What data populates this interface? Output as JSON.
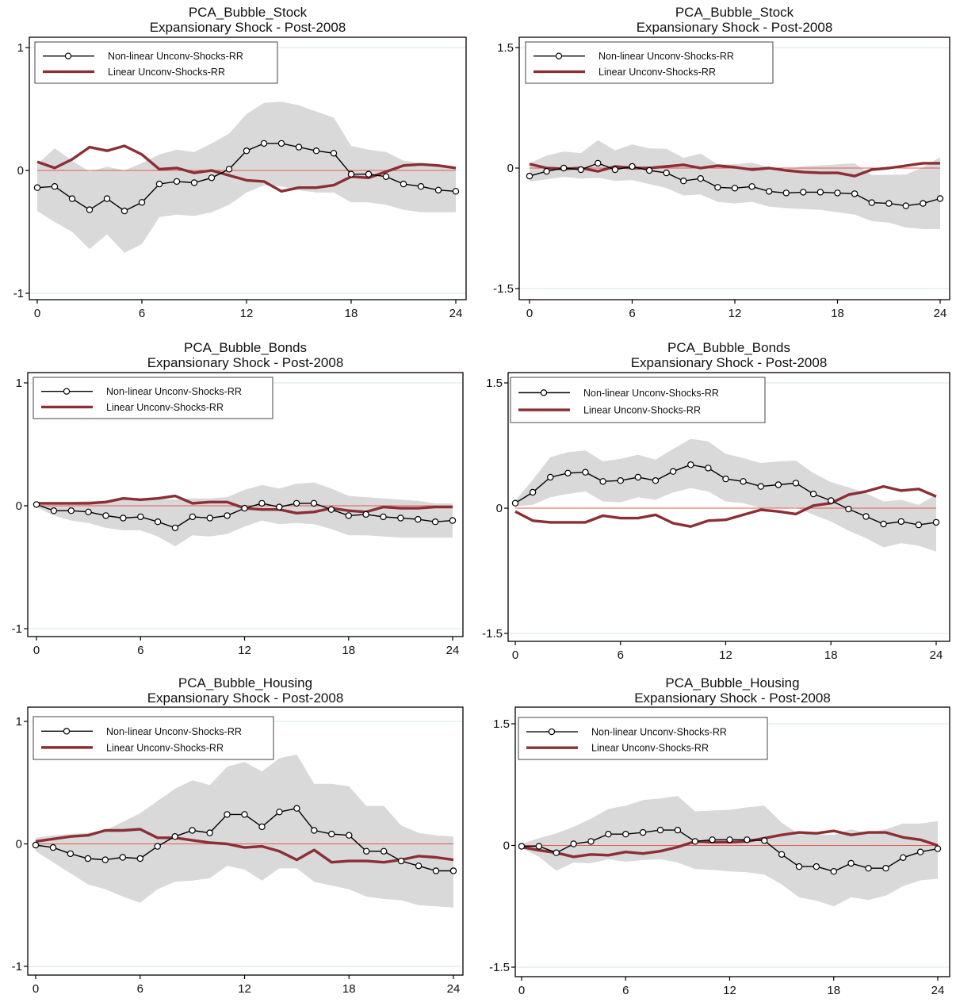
{
  "chart_data": [
    {
      "type": "line",
      "title": "PCA_Bubble_Stock",
      "subtitle": "Expansionary Shock - Post-2008",
      "xticks": [
        0,
        6,
        12,
        18,
        24
      ],
      "yticks": [
        -1,
        0,
        1
      ],
      "xlim": [
        0,
        24
      ],
      "ylim": [
        -1,
        1
      ],
      "legend_position": "top-left",
      "x": [
        0,
        1,
        2,
        3,
        4,
        5,
        6,
        7,
        8,
        9,
        10,
        11,
        12,
        13,
        14,
        15,
        16,
        17,
        18,
        19,
        20,
        21,
        22,
        23,
        24
      ],
      "series": [
        {
          "name": "Non-linear Unconv-Shocks-RR",
          "color": "#000000",
          "marker": "circle",
          "values": [
            -0.14,
            -0.13,
            -0.23,
            -0.32,
            -0.23,
            -0.33,
            -0.26,
            -0.11,
            -0.09,
            -0.1,
            -0.06,
            0.01,
            0.16,
            0.22,
            0.22,
            0.19,
            0.16,
            0.14,
            -0.03,
            -0.03,
            -0.05,
            -0.11,
            -0.13,
            -0.16,
            -0.17
          ]
        },
        {
          "name": "Linear Unconv-Shocks-RR",
          "color": "#8b2e35",
          "values": [
            0.07,
            0.02,
            0.09,
            0.19,
            0.16,
            0.2,
            0.13,
            0.01,
            0.02,
            -0.02,
            0.0,
            -0.04,
            -0.08,
            -0.09,
            -0.17,
            -0.14,
            -0.14,
            -0.12,
            -0.05,
            -0.06,
            -0.01,
            0.04,
            0.05,
            0.04,
            0.02
          ]
        }
      ],
      "band": {
        "lower": [
          -0.33,
          -0.42,
          -0.5,
          -0.64,
          -0.52,
          -0.67,
          -0.6,
          -0.38,
          -0.36,
          -0.37,
          -0.34,
          -0.28,
          -0.18,
          -0.12,
          -0.13,
          -0.16,
          -0.18,
          -0.18,
          -0.26,
          -0.26,
          -0.28,
          -0.32,
          -0.34,
          -0.34,
          -0.34
        ],
        "upper": [
          0.05,
          0.18,
          0.08,
          -0.01,
          0.03,
          0.0,
          0.06,
          0.13,
          0.17,
          0.15,
          0.22,
          0.3,
          0.46,
          0.55,
          0.56,
          0.53,
          0.48,
          0.43,
          0.2,
          0.17,
          0.15,
          0.08,
          0.06,
          0.03,
          0.02
        ]
      },
      "zero_line": true
    },
    {
      "type": "line",
      "title": "PCA_Bubble_Stock",
      "subtitle": "Expansionary Shock - Post-2008",
      "xticks": [
        0,
        6,
        12,
        18,
        24
      ],
      "yticks": [
        -1.5,
        0,
        1.5
      ],
      "xlim": [
        0,
        24
      ],
      "ylim": [
        -1.5,
        1.5
      ],
      "legend_position": "top-left",
      "x": [
        0,
        1,
        2,
        3,
        4,
        5,
        6,
        7,
        8,
        9,
        10,
        11,
        12,
        13,
        14,
        15,
        16,
        17,
        18,
        19,
        20,
        21,
        22,
        23,
        24
      ],
      "series": [
        {
          "name": "Non-linear Unconv-Shocks-RR",
          "color": "#000000",
          "marker": "circle",
          "values": [
            -0.1,
            -0.04,
            0.0,
            -0.02,
            0.06,
            -0.02,
            0.02,
            -0.03,
            -0.06,
            -0.16,
            -0.13,
            -0.24,
            -0.25,
            -0.23,
            -0.29,
            -0.31,
            -0.3,
            -0.3,
            -0.31,
            -0.32,
            -0.43,
            -0.44,
            -0.47,
            -0.44,
            -0.38
          ]
        },
        {
          "name": "Linear Unconv-Shocks-RR",
          "color": "#8b2e35",
          "values": [
            0.05,
            0.0,
            -0.01,
            0.0,
            -0.04,
            0.02,
            0.0,
            0.0,
            0.02,
            0.04,
            0.0,
            0.03,
            0.01,
            -0.02,
            0.0,
            -0.03,
            -0.05,
            -0.06,
            -0.06,
            -0.1,
            -0.02,
            0.0,
            0.03,
            0.06,
            0.06
          ]
        }
      ],
      "band": {
        "lower": [
          -0.17,
          -0.14,
          -0.11,
          -0.13,
          -0.12,
          -0.16,
          -0.15,
          -0.2,
          -0.25,
          -0.34,
          -0.33,
          -0.42,
          -0.44,
          -0.42,
          -0.48,
          -0.5,
          -0.51,
          -0.52,
          -0.55,
          -0.58,
          -0.66,
          -0.68,
          -0.74,
          -0.76,
          -0.76
        ]
      },
      "zero_line": true
    },
    {
      "type": "line",
      "title": "PCA_Bubble_Bonds",
      "subtitle": "Expansionary Shock - Post-2008",
      "xticks": [
        0,
        6,
        12,
        18,
        24
      ],
      "yticks": [
        -1,
        0,
        1
      ],
      "xlim": [
        0,
        24
      ],
      "ylim": [
        -1,
        1
      ],
      "legend_position": "top-left",
      "x": [
        0,
        1,
        2,
        3,
        4,
        5,
        6,
        7,
        8,
        9,
        10,
        11,
        12,
        13,
        14,
        15,
        16,
        17,
        18,
        19,
        20,
        21,
        22,
        23,
        24
      ],
      "series": [
        {
          "name": "Non-linear Unconv-Shocks-RR",
          "color": "#000000",
          "marker": "circle",
          "values": [
            0.01,
            -0.04,
            -0.04,
            -0.05,
            -0.08,
            -0.1,
            -0.09,
            -0.13,
            -0.18,
            -0.09,
            -0.1,
            -0.08,
            -0.02,
            0.02,
            -0.01,
            0.02,
            0.02,
            -0.03,
            -0.08,
            -0.07,
            -0.09,
            -0.1,
            -0.11,
            -0.13,
            -0.12
          ]
        },
        {
          "name": "Linear Unconv-Shocks-RR",
          "color": "#8b2e35",
          "values": [
            0.02,
            0.02,
            0.02,
            0.02,
            0.03,
            0.06,
            0.05,
            0.06,
            0.08,
            0.02,
            0.03,
            0.03,
            -0.02,
            -0.03,
            -0.03,
            -0.06,
            -0.05,
            -0.02,
            -0.04,
            -0.05,
            -0.01,
            -0.02,
            -0.02,
            -0.01,
            -0.01
          ]
        }
      ],
      "band": {
        "lower": [
          -0.01,
          -0.08,
          -0.12,
          -0.14,
          -0.18,
          -0.2,
          -0.2,
          -0.25,
          -0.33,
          -0.24,
          -0.25,
          -0.23,
          -0.17,
          -0.12,
          -0.15,
          -0.14,
          -0.15,
          -0.19,
          -0.24,
          -0.24,
          -0.25,
          -0.26,
          -0.26,
          -0.26,
          -0.26
        ],
        "upper": [
          0.03,
          0.02,
          0.03,
          0.04,
          0.04,
          0.05,
          0.06,
          0.06,
          0.05,
          0.06,
          0.06,
          0.07,
          0.13,
          0.17,
          0.14,
          0.18,
          0.19,
          0.14,
          0.08,
          0.07,
          0.06,
          0.05,
          0.04,
          0.02,
          0.02
        ]
      },
      "zero_line": true
    },
    {
      "type": "line",
      "title": "PCA_Bubble_Bonds",
      "subtitle": "Expansionary Shock - Post-2008",
      "xticks": [
        0,
        6,
        12,
        18,
        24
      ],
      "yticks": [
        -1.5,
        0,
        1.5
      ],
      "xlim": [
        0,
        24
      ],
      "ylim": [
        -1.5,
        1.5
      ],
      "legend_position": "top-left",
      "x": [
        0,
        1,
        2,
        3,
        4,
        5,
        6,
        7,
        8,
        9,
        10,
        11,
        12,
        13,
        14,
        15,
        16,
        17,
        18,
        19,
        20,
        21,
        22,
        23,
        24
      ],
      "series": [
        {
          "name": "Non-linear Unconv-Shocks-RR",
          "color": "#000000",
          "marker": "circle",
          "values": [
            0.06,
            0.19,
            0.37,
            0.42,
            0.43,
            0.32,
            0.33,
            0.37,
            0.33,
            0.44,
            0.52,
            0.48,
            0.35,
            0.32,
            0.26,
            0.28,
            0.3,
            0.17,
            0.09,
            -0.01,
            -0.1,
            -0.19,
            -0.16,
            -0.2,
            -0.17
          ]
        },
        {
          "name": "Linear Unconv-Shocks-RR",
          "color": "#8b2e35",
          "values": [
            -0.04,
            -0.15,
            -0.17,
            -0.17,
            -0.17,
            -0.09,
            -0.12,
            -0.12,
            -0.08,
            -0.18,
            -0.22,
            -0.15,
            -0.14,
            -0.08,
            -0.02,
            -0.04,
            -0.07,
            0.03,
            0.06,
            0.16,
            0.2,
            0.26,
            0.21,
            0.23,
            0.14
          ]
        }
      ],
      "band": {
        "lower": [
          0.02,
          0.04,
          0.13,
          0.17,
          0.2,
          0.08,
          0.07,
          0.13,
          0.1,
          0.19,
          0.24,
          0.2,
          0.08,
          0.06,
          0.0,
          0.0,
          0.01,
          -0.08,
          -0.16,
          -0.27,
          -0.36,
          -0.47,
          -0.42,
          -0.45,
          -0.52
        ],
        "upper": [
          0.09,
          0.34,
          0.61,
          0.67,
          0.69,
          0.56,
          0.59,
          0.64,
          0.58,
          0.71,
          0.83,
          0.8,
          0.65,
          0.6,
          0.54,
          0.56,
          0.57,
          0.42,
          0.31,
          0.25,
          0.18,
          0.08,
          0.1,
          0.04,
          0.16
        ]
      },
      "zero_line": true
    },
    {
      "type": "line",
      "title": "PCA_Bubble_Housing",
      "subtitle": "Expansionary Shock - Post-2008",
      "xticks": [
        0,
        6,
        12,
        18,
        24
      ],
      "yticks": [
        -1,
        0,
        1
      ],
      "xlim": [
        0,
        24
      ],
      "ylim": [
        -1,
        1
      ],
      "legend_position": "top-left",
      "x": [
        0,
        1,
        2,
        3,
        4,
        5,
        6,
        7,
        8,
        9,
        10,
        11,
        12,
        13,
        14,
        15,
        16,
        17,
        18,
        19,
        20,
        21,
        22,
        23,
        24
      ],
      "series": [
        {
          "name": "Non-linear Unconv-Shocks-RR",
          "color": "#000000",
          "marker": "circle",
          "values": [
            -0.01,
            -0.03,
            -0.08,
            -0.12,
            -0.13,
            -0.11,
            -0.12,
            -0.02,
            0.06,
            0.11,
            0.09,
            0.24,
            0.24,
            0.14,
            0.26,
            0.29,
            0.11,
            0.08,
            0.07,
            -0.06,
            -0.06,
            -0.14,
            -0.18,
            -0.22,
            -0.22
          ]
        },
        {
          "name": "Linear Unconv-Shocks-RR",
          "color": "#8b2e35",
          "values": [
            0.02,
            0.04,
            0.06,
            0.07,
            0.11,
            0.11,
            0.12,
            0.05,
            0.05,
            0.03,
            0.01,
            0.0,
            -0.03,
            -0.02,
            -0.06,
            -0.13,
            -0.05,
            -0.15,
            -0.14,
            -0.14,
            -0.15,
            -0.13,
            -0.1,
            -0.11,
            -0.13
          ]
        }
      ],
      "band": {
        "lower": [
          -0.06,
          -0.15,
          -0.24,
          -0.33,
          -0.37,
          -0.43,
          -0.48,
          -0.37,
          -0.31,
          -0.3,
          -0.28,
          -0.18,
          -0.21,
          -0.3,
          -0.2,
          -0.2,
          -0.31,
          -0.34,
          -0.37,
          -0.43,
          -0.45,
          -0.46,
          -0.5,
          -0.51,
          -0.52
        ],
        "upper": [
          0.05,
          0.07,
          0.08,
          0.09,
          0.11,
          0.18,
          0.25,
          0.35,
          0.45,
          0.52,
          0.48,
          0.63,
          0.67,
          0.59,
          0.7,
          0.73,
          0.49,
          0.49,
          0.47,
          0.31,
          0.31,
          0.15,
          0.09,
          0.07,
          0.06
        ]
      },
      "zero_line": true
    },
    {
      "type": "line",
      "title": "PCA_Bubble_Housing",
      "subtitle": "Expansionary Shock - Post-2008",
      "xticks": [
        0,
        6,
        12,
        18,
        24
      ],
      "yticks": [
        -1.5,
        0,
        1.5
      ],
      "xlim": [
        0,
        24
      ],
      "ylim": [
        -1.5,
        1.5
      ],
      "legend_position": "top-left",
      "x": [
        0,
        1,
        2,
        3,
        4,
        5,
        6,
        7,
        8,
        9,
        10,
        11,
        12,
        13,
        14,
        15,
        16,
        17,
        18,
        19,
        20,
        21,
        22,
        23,
        24
      ],
      "series": [
        {
          "name": "Non-linear Unconv-Shocks-RR",
          "color": "#000000",
          "marker": "circle",
          "values": [
            -0.01,
            -0.01,
            -0.09,
            0.02,
            0.05,
            0.14,
            0.14,
            0.16,
            0.19,
            0.19,
            0.05,
            0.07,
            0.07,
            0.07,
            0.06,
            -0.11,
            -0.26,
            -0.26,
            -0.32,
            -0.22,
            -0.28,
            -0.28,
            -0.15,
            -0.08,
            -0.04
          ]
        },
        {
          "name": "Linear Unconv-Shocks-RR",
          "color": "#8b2e35",
          "values": [
            -0.02,
            -0.06,
            -0.09,
            -0.14,
            -0.11,
            -0.12,
            -0.08,
            -0.1,
            -0.07,
            -0.02,
            0.05,
            0.04,
            0.04,
            0.05,
            0.09,
            0.13,
            0.16,
            0.15,
            0.18,
            0.13,
            0.16,
            0.16,
            0.1,
            0.07,
            0.0
          ]
        }
      ],
      "band": {
        "lower": [
          -0.03,
          -0.14,
          -0.31,
          -0.21,
          -0.22,
          -0.17,
          -0.2,
          -0.18,
          -0.17,
          -0.21,
          -0.29,
          -0.3,
          -0.32,
          -0.33,
          -0.36,
          -0.48,
          -0.64,
          -0.68,
          -0.75,
          -0.64,
          -0.67,
          -0.62,
          -0.5,
          -0.43,
          -0.41
        ],
        "upper": [
          0.02,
          0.09,
          0.15,
          0.23,
          0.33,
          0.45,
          0.49,
          0.56,
          0.58,
          0.61,
          0.42,
          0.43,
          0.44,
          0.47,
          0.49,
          0.28,
          0.14,
          0.14,
          0.13,
          0.2,
          0.15,
          0.2,
          0.27,
          0.27,
          0.3
        ]
      },
      "zero_line": true
    }
  ]
}
